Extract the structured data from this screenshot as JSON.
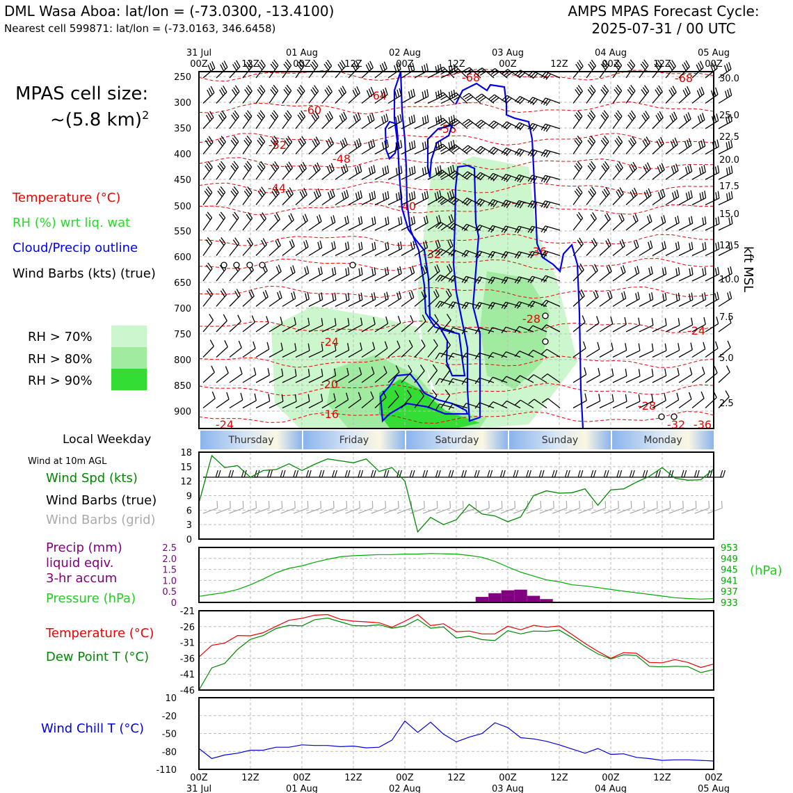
{
  "header": {
    "title_left": "DML Wasa Aboa: lat/lon = (-73.0300, -13.4100)",
    "subtitle_left": "Nearest cell 599871: lat/lon = (-73.0163, 346.6458)",
    "title_right_1": "AMPS MPAS Forecast Cycle:",
    "title_right_2": "2025-07-31 / 00 UTC"
  },
  "sidebar": {
    "cell_size_1": "MPAS cell size:",
    "cell_size_2": "~(5.8 km)",
    "cell_size_sup": "2",
    "legend_temperature": "Temperature (°C)",
    "legend_rh": "RH (%) wrt liq. wat",
    "legend_cloud": "Cloud/Precip outline",
    "legend_wind": "Wind Barbs (kts) (true)",
    "rh70": "RH > 70%",
    "rh80": "RH > 80%",
    "rh90": "RH > 90%",
    "local_weekday": "Local Weekday",
    "wind10m": "Wind at 10m AGL",
    "wind_spd": "Wind Spd (kts)",
    "wind_barbs_true": "Wind Barbs (true)",
    "wind_barbs_grid": "Wind Barbs (grid)",
    "precip_1": "Precip (mm)",
    "precip_2": "liquid eqiv.",
    "precip_3": "3-hr accum",
    "pressure": "Pressure (hPa)",
    "temp2": "Temperature (°C)",
    "dew": "Dew Point T (°C)",
    "windchill": "Wind Chill T (°C)",
    "hpa_unit": "(hPa)",
    "kft": "kft MSL"
  },
  "colors": {
    "temperature": "#ee0000",
    "rh_label": "#22dd22",
    "cloud": "#0000ee",
    "rh70": "#ccf7cc",
    "rh80": "#a0eba0",
    "rh90": "#33dd33",
    "precip": "#800080",
    "pressure": "#00aa00",
    "dewpoint": "#008800",
    "windchill": "#0000dd",
    "grid_barb": "#aaaaaa"
  },
  "chart_data": [
    {
      "type": "heatmap",
      "name": "cross-section",
      "time_ticks_top": [
        {
          "label": "31 Jul\n00Z"
        },
        {
          "label": "12Z"
        },
        {
          "label": "01 Aug\n00Z"
        },
        {
          "label": "12Z"
        },
        {
          "label": "02 Aug\n00Z"
        },
        {
          "label": "12Z"
        },
        {
          "label": "03 Aug\n00Z"
        },
        {
          "label": "12Z"
        },
        {
          "label": "04 Aug\n00Z"
        },
        {
          "label": "12Z"
        },
        {
          "label": "05 Aug\n00Z"
        }
      ],
      "pressure_ticks": [
        "250",
        "300",
        "350",
        "400",
        "450",
        "500",
        "550",
        "600",
        "650",
        "700",
        "750",
        "800",
        "850",
        "900"
      ],
      "height_ticks": [
        "30.0",
        "25.0",
        "22.5",
        "20.0",
        "17.5",
        "15.0",
        "12.5",
        "10.0",
        "7.5",
        "5.0",
        "2.5"
      ],
      "temp_labels": [
        "-68",
        "-64",
        "-60",
        "-56",
        "-52",
        "-48",
        "-44",
        "-40",
        "-36",
        "-32",
        "-28",
        "-24",
        "-24",
        "-20",
        "-16",
        "-24",
        "-28",
        "-32",
        "-36",
        "-68"
      ],
      "weekdays": [
        "Thursday",
        "Friday",
        "Saturday",
        "Sunday",
        "Monday"
      ]
    },
    {
      "type": "line",
      "name": "wind-speed",
      "ylabel": "Wind Spd (kts)",
      "y_ticks": [
        "0",
        "3",
        "6",
        "9",
        "12",
        "15",
        "18"
      ],
      "ylim": [
        0,
        18
      ],
      "x_hours": [
        0,
        3,
        6,
        9,
        12,
        15,
        18,
        21,
        24,
        27,
        30,
        33,
        36,
        39,
        42,
        45,
        48,
        51,
        54,
        57,
        60,
        63,
        66,
        69,
        72,
        75,
        78,
        81,
        84,
        87,
        90,
        93,
        96,
        99,
        102,
        105,
        108,
        111,
        114,
        117,
        120
      ],
      "values": [
        7.5,
        17.3,
        14.8,
        15.2,
        12.8,
        14.2,
        14.4,
        15.6,
        14.2,
        15.5,
        16.6,
        16.2,
        15.8,
        16.6,
        14.0,
        14.8,
        12.0,
        1.5,
        4.5,
        3.0,
        4.0,
        7.2,
        5.2,
        4.8,
        3.6,
        4.6,
        9.0,
        10.0,
        9.5,
        9.6,
        10.4,
        7.0,
        10.2,
        10.4,
        11.8,
        13.0,
        14.8,
        12.6,
        12.2,
        12.3,
        14.5
      ]
    },
    {
      "type": "bar",
      "name": "precip-pressure",
      "precip_ticks": [
        "0",
        "0.5",
        "1.0",
        "1.5",
        "2.0",
        "2.5"
      ],
      "pressure_ticks": [
        "933",
        "937",
        "941",
        "945",
        "949",
        "953"
      ],
      "precip_hours": [
        66,
        69,
        72,
        75,
        78,
        81
      ],
      "precip_values": [
        0.25,
        0.42,
        0.55,
        0.58,
        0.3,
        0.15
      ],
      "pressure_values": [
        935.2,
        935.9,
        936.6,
        937.7,
        939.4,
        941.5,
        943.8,
        945.4,
        946.3,
        947.6,
        948.7,
        949.6,
        950.0,
        950.2,
        950.4,
        950.4,
        950.6,
        950.6,
        950.8,
        950.7,
        950.6,
        950.1,
        949.4,
        947.9,
        945.9,
        944.0,
        942.6,
        941.2,
        940.5,
        939.4,
        939.0,
        938.4,
        937.7,
        937.1,
        936.5,
        935.9,
        935.3,
        934.7,
        934.4,
        934.2,
        934.4
      ]
    },
    {
      "type": "line",
      "name": "temp-dew",
      "y_ticks": [
        "-21",
        "-26",
        "-31",
        "-36",
        "-41",
        "-46"
      ],
      "ylim": [
        -46,
        -21
      ],
      "temperature": [
        -35.6,
        -31.9,
        -31.2,
        -28.8,
        -28.9,
        -27.9,
        -25.9,
        -24.0,
        -23.4,
        -22.4,
        -22.2,
        -23.7,
        -24.3,
        -24.5,
        -24.8,
        -26.2,
        -24.3,
        -22.2,
        -25.7,
        -25.1,
        -27.6,
        -27.4,
        -28.3,
        -28.3,
        -25.9,
        -27.0,
        -25.6,
        -26.2,
        -25.8,
        -28.5,
        -31.3,
        -33.8,
        -36.0,
        -34.2,
        -34.4,
        -37.3,
        -37.4,
        -36.4,
        -37.3,
        -38.9,
        -37.8
      ],
      "dewpoint": [
        -46.0,
        -39.0,
        -37.6,
        -33.2,
        -30.0,
        -28.8,
        -26.6,
        -25.6,
        -25.8,
        -23.8,
        -23.3,
        -24.5,
        -25.7,
        -25.8,
        -25.4,
        -26.5,
        -25.8,
        -23.7,
        -26.5,
        -26.1,
        -29.6,
        -29.0,
        -30.1,
        -30.4,
        -27.3,
        -28.3,
        -27.4,
        -27.5,
        -27.1,
        -29.5,
        -32.2,
        -34.6,
        -36.2,
        -34.9,
        -35.1,
        -38.5,
        -38.7,
        -38.5,
        -38.6,
        -40.5,
        -39.5
      ]
    },
    {
      "type": "line",
      "name": "wind-chill",
      "y_ticks": [
        "10",
        "-20",
        "-50",
        "-80",
        "-110"
      ],
      "ylim": [
        -110,
        10
      ],
      "values": [
        -75,
        -92,
        -86,
        -83,
        -78,
        -78,
        -73,
        -73,
        -69,
        -70,
        -70,
        -72,
        -71,
        -74,
        -73,
        -61,
        -29,
        -48,
        -31,
        -51,
        -64,
        -56,
        -50,
        -32,
        -40,
        -57,
        -59,
        -63,
        -69,
        -76,
        -83,
        -75,
        -85,
        -84,
        -90,
        -92,
        -95,
        -94,
        -94,
        -95,
        -96
      ]
    }
  ]
}
